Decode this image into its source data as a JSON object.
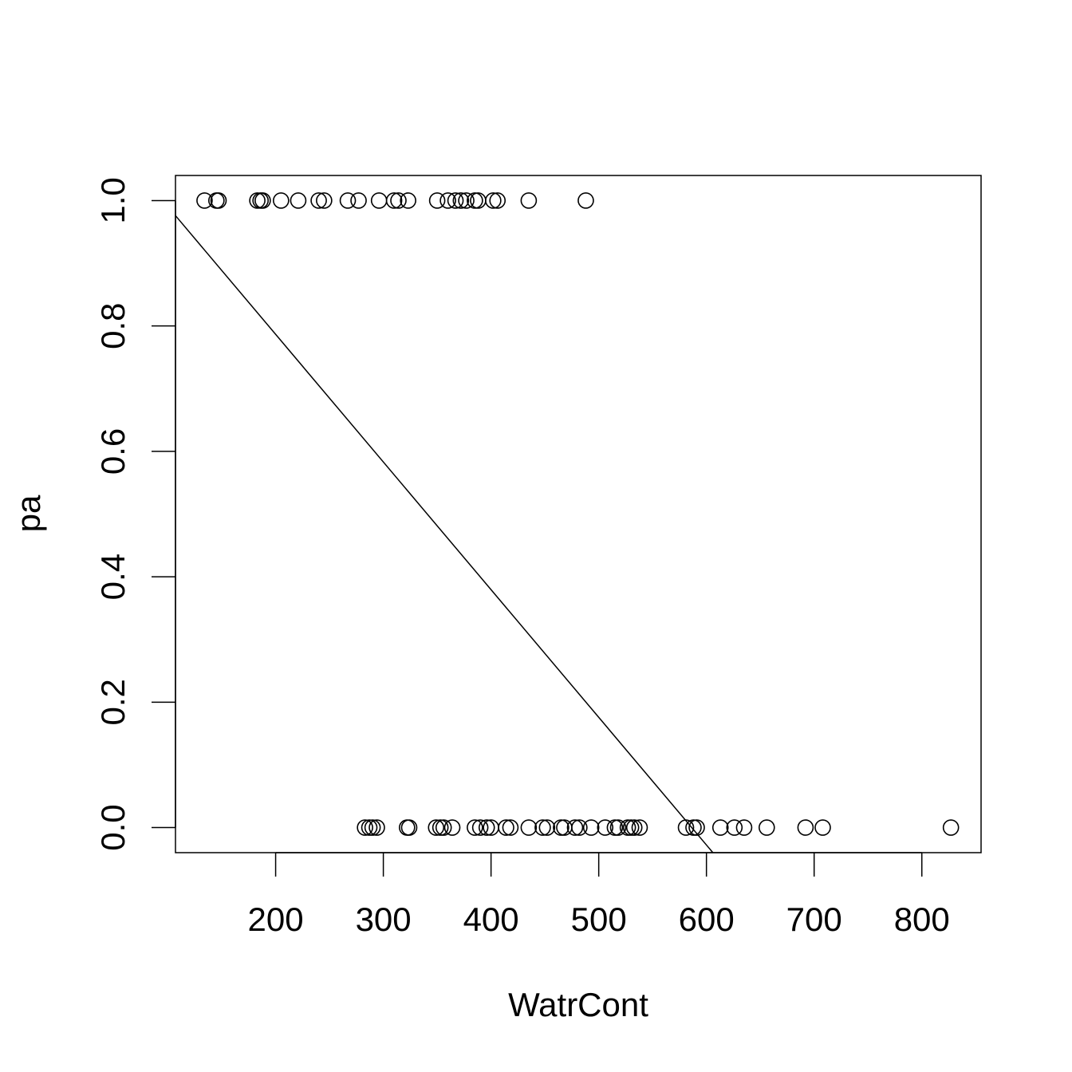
{
  "chart_data": {
    "type": "scatter",
    "xlabel": "WatrCont",
    "ylabel": "pa",
    "xlim": [
      107,
      855
    ],
    "ylim": [
      -0.04,
      1.04
    ],
    "x_ticks": [
      200,
      300,
      400,
      500,
      600,
      700,
      800
    ],
    "x_tick_labels": [
      "200",
      "300",
      "400",
      "500",
      "600",
      "700",
      "800"
    ],
    "y_ticks": [
      0.0,
      0.2,
      0.4,
      0.6,
      0.8,
      1.0
    ],
    "y_tick_labels": [
      "0.0",
      "0.2",
      "0.4",
      "0.6",
      "0.8",
      "1.0"
    ],
    "grid": false,
    "marker": "open-circle",
    "series": [
      {
        "x": [
          134,
          145,
          147,
          183,
          186,
          188,
          205,
          221,
          240,
          245,
          267,
          277,
          296,
          310,
          314,
          323,
          350,
          360,
          367,
          372,
          377,
          385,
          388,
          402,
          406,
          435,
          488
        ],
        "y": [
          1,
          1,
          1,
          1,
          1,
          1,
          1,
          1,
          1,
          1,
          1,
          1,
          1,
          1,
          1,
          1,
          1,
          1,
          1,
          1,
          1,
          1,
          1,
          1,
          1,
          1,
          1
        ]
      },
      {
        "x": [
          283,
          287,
          290,
          294,
          322,
          324,
          349,
          353,
          356,
          364,
          385,
          390,
          396,
          400,
          414,
          418,
          435,
          448,
          452,
          465,
          468,
          478,
          482,
          493,
          506,
          515,
          518,
          527,
          530,
          533,
          538,
          581,
          588,
          591,
          613,
          626,
          635,
          656,
          692,
          708,
          827
        ],
        "y": [
          0,
          0,
          0,
          0,
          0,
          0,
          0,
          0,
          0,
          0,
          0,
          0,
          0,
          0,
          0,
          0,
          0,
          0,
          0,
          0,
          0,
          0,
          0,
          0,
          0,
          0,
          0,
          0,
          0,
          0,
          0,
          0,
          0,
          0,
          0,
          0,
          0,
          0,
          0,
          0,
          0
        ]
      }
    ],
    "fit_line": {
      "x": [
        107,
        606
      ],
      "y": [
        0.976,
        -0.04
      ]
    }
  }
}
